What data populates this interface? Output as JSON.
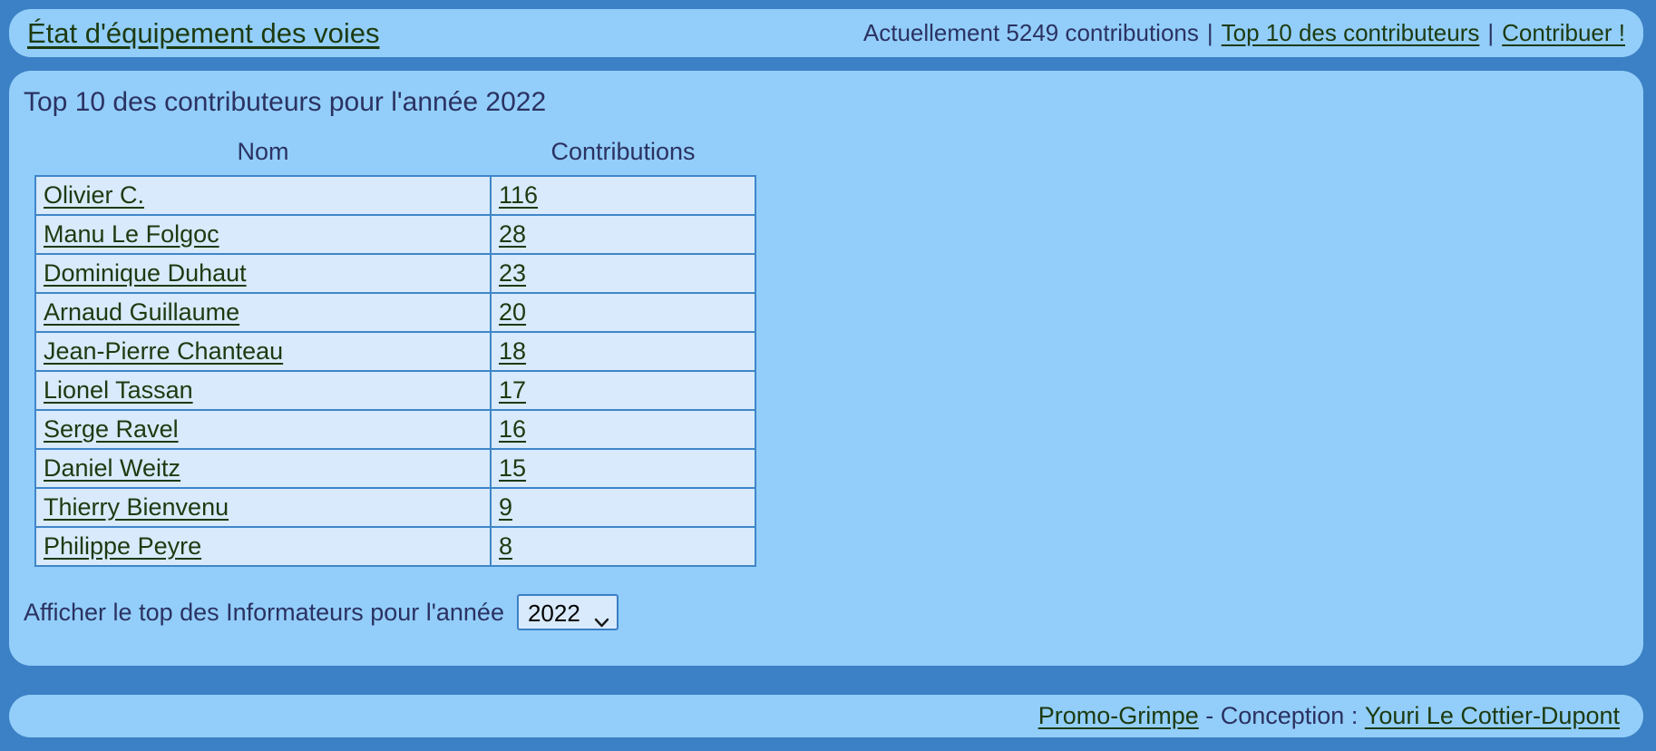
{
  "colors": {
    "page_bg": "#3c80c5",
    "panel_bg": "#92cef9",
    "cell_bg": "#d8eafb",
    "table_border": "#3f86c8",
    "text_navy": "#2b3262",
    "link_dark": "#1d3a10",
    "select_bg": "#d8eafb",
    "select_border": "#3c7fc6"
  },
  "header": {
    "title": "État d'équipement des voies",
    "contributions_text": "Actuellement 5249 contributions",
    "separator": "|",
    "nav": [
      {
        "label": "Top 10 des contributeurs"
      },
      {
        "label": "Contribuer !"
      }
    ]
  },
  "main": {
    "heading": "Top 10 des contributeurs pour l'année 2022",
    "table": {
      "columns": [
        "Nom",
        "Contributions"
      ],
      "rows": [
        {
          "name": "Olivier C.",
          "contributions": "116"
        },
        {
          "name": "Manu Le Folgoc",
          "contributions": "28"
        },
        {
          "name": "Dominique Duhaut",
          "contributions": "23"
        },
        {
          "name": "Arnaud Guillaume",
          "contributions": "20"
        },
        {
          "name": "Jean-Pierre Chanteau",
          "contributions": "18"
        },
        {
          "name": "Lionel Tassan",
          "contributions": "17"
        },
        {
          "name": "Serge Ravel",
          "contributions": "16"
        },
        {
          "name": "Daniel Weitz",
          "contributions": "15"
        },
        {
          "name": "Thierry Bienvenu",
          "contributions": "9"
        },
        {
          "name": "Philippe Peyre",
          "contributions": "8"
        }
      ]
    },
    "year_filter": {
      "label": "Afficher le top des Informateurs pour l'année",
      "selected": "2022"
    }
  },
  "footer": {
    "site_link": "Promo-Grimpe",
    "middle_text": " - Conception : ",
    "author_link": "Youri Le Cottier-Dupont"
  }
}
